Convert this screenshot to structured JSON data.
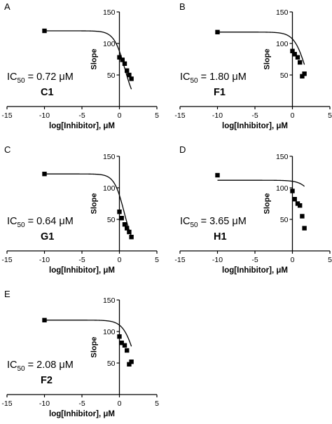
{
  "chart_data": [
    {
      "type": "scatter",
      "panel_label": "A",
      "compound": "C1",
      "ic50_label": "IC",
      "ic50_sub": "50",
      "ic50_value": " = 0.72 μM",
      "xlabel": "log[Inhibitor], μM",
      "ylabel": "Slope",
      "xlim": [
        -15,
        5
      ],
      "ylim": [
        0,
        150
      ],
      "xticks": [
        -15,
        -10,
        -5,
        0,
        5
      ],
      "yticks": [
        50,
        100,
        150
      ],
      "points": [
        [
          -10,
          120
        ],
        [
          0,
          78
        ],
        [
          0.4,
          74
        ],
        [
          0.7,
          68
        ],
        [
          1.0,
          57
        ],
        [
          1.3,
          50
        ],
        [
          1.6,
          44
        ]
      ],
      "curve": {
        "top": 120,
        "bottom": 0,
        "logIC50": 0.72,
        "hill": 0.6
      }
    },
    {
      "type": "scatter",
      "panel_label": "B",
      "compound": "F1",
      "ic50_label": "IC",
      "ic50_sub": "50",
      "ic50_value": " = 1.80 μM",
      "xlabel": "log[Inhibitor], μM",
      "ylabel": "Slope",
      "xlim": [
        -15,
        5
      ],
      "ylim": [
        0,
        150
      ],
      "xticks": [
        -15,
        -10,
        -5,
        0,
        5
      ],
      "yticks": [
        50,
        100,
        150
      ],
      "points": [
        [
          -10,
          118
        ],
        [
          0,
          88
        ],
        [
          0.3,
          83
        ],
        [
          0.7,
          78
        ],
        [
          1.0,
          70
        ],
        [
          1.3,
          48
        ],
        [
          1.6,
          52
        ]
      ],
      "curve": {
        "top": 118,
        "bottom": 0,
        "logIC50": 1.8,
        "hill": 0.55
      }
    },
    {
      "type": "scatter",
      "panel_label": "C",
      "compound": "G1",
      "ic50_label": "IC",
      "ic50_sub": "50",
      "ic50_value": " = 0.64 μM",
      "xlabel": "log[Inhibitor], μM",
      "ylabel": "Slope",
      "xlim": [
        -15,
        5
      ],
      "ylim": [
        0,
        150
      ],
      "xticks": [
        -15,
        -10,
        -5,
        0,
        5
      ],
      "yticks": [
        50,
        100,
        150
      ],
      "points": [
        [
          -10,
          122
        ],
        [
          0,
          62
        ],
        [
          0.3,
          52
        ],
        [
          0.7,
          42
        ],
        [
          1.0,
          36
        ],
        [
          1.3,
          30
        ],
        [
          1.6,
          22
        ]
      ],
      "curve": {
        "top": 122,
        "bottom": 0,
        "logIC50": 0.64,
        "hill": 0.65
      }
    },
    {
      "type": "scatter",
      "panel_label": "D",
      "compound": "H1",
      "ic50_label": "IC",
      "ic50_sub": "50",
      "ic50_value": " = 3.65 μM",
      "xlabel": "log[Inhibitor], μM",
      "ylabel": "Slope",
      "xlim": [
        -15,
        5
      ],
      "ylim": [
        0,
        150
      ],
      "xticks": [
        -15,
        -10,
        -5,
        0,
        5
      ],
      "yticks": [
        50,
        100,
        150
      ],
      "points": [
        [
          -10,
          120
        ],
        [
          0,
          95
        ],
        [
          0.3,
          82
        ],
        [
          0.7,
          75
        ],
        [
          1.0,
          72
        ],
        [
          1.3,
          55
        ],
        [
          1.6,
          36
        ]
      ],
      "curve": {
        "top": 112,
        "bottom": 0,
        "logIC50": 3.65,
        "hill": 0.5
      }
    },
    {
      "type": "scatter",
      "panel_label": "E",
      "compound": "F2",
      "ic50_label": "IC",
      "ic50_sub": "50",
      "ic50_value": " = 2.08 μM",
      "xlabel": "log[Inhibitor], μM",
      "ylabel": "Slope",
      "xlim": [
        -15,
        5
      ],
      "ylim": [
        0,
        150
      ],
      "xticks": [
        -15,
        -10,
        -5,
        0,
        5
      ],
      "yticks": [
        50,
        100,
        150
      ],
      "points": [
        [
          -10,
          118
        ],
        [
          0,
          92
        ],
        [
          0.3,
          82
        ],
        [
          0.7,
          78
        ],
        [
          1.0,
          70
        ],
        [
          1.3,
          48
        ],
        [
          1.6,
          52
        ]
      ],
      "curve": {
        "top": 118,
        "bottom": 0,
        "logIC50": 2.08,
        "hill": 0.55
      }
    }
  ]
}
